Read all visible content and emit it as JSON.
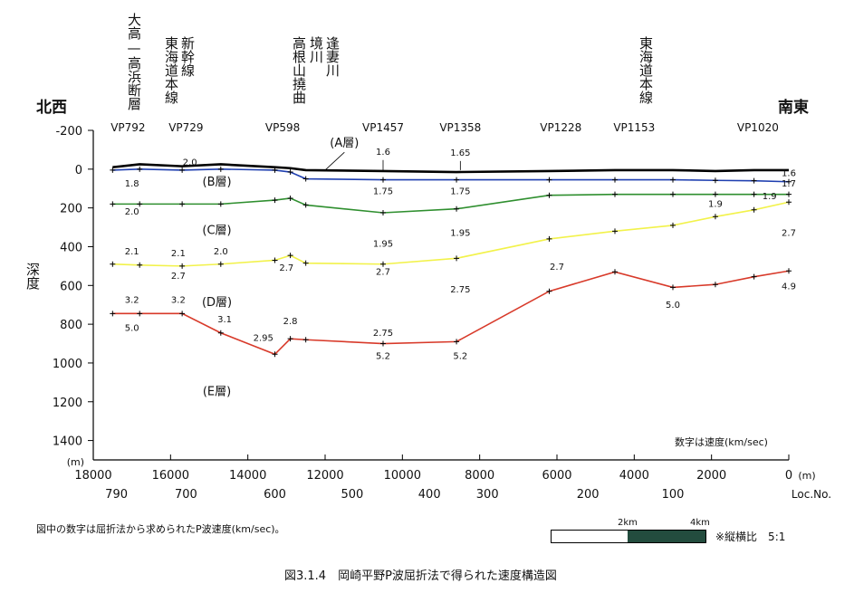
{
  "left_direction": "北西",
  "right_direction": "南東",
  "top_labels": {
    "oodaka": "大高—高浜断層",
    "shinkansen": "新幹線",
    "tokaido1": "東海道本線",
    "takane": "高根山撓曲",
    "sakaigawa": "境川",
    "aizuma": "逢妻川",
    "tokaido2": "東海道本線"
  },
  "depth_label": "深度",
  "note_right": "数字は速度(km/sec)",
  "note_left": "図中の数字は屈折法から求められたP波速度(km/sec)。",
  "scale": {
    "tick_a": "2km",
    "tick_b": "4km",
    "ratio": "※縦横比　5:1"
  },
  "caption": "図3.1.4　岡崎平野P波屈折法で得られた速度構造図",
  "chart_data": {
    "type": "line",
    "xlabel": "(m)",
    "x_reversed": true,
    "xlim": [
      18000,
      0
    ],
    "ylabel": "深度",
    "y_unit": "(m)",
    "y_reversed": true,
    "ylim": [
      -200,
      1500
    ],
    "x_ticks": [
      18000,
      16000,
      14000,
      12000,
      10000,
      8000,
      6000,
      4000,
      2000,
      0
    ],
    "x_tick_labels": [
      "18000",
      "16000",
      "14000",
      "12000",
      "10000",
      "8000",
      "6000",
      "4000",
      "2000",
      "0"
    ],
    "y_ticks": [
      -200,
      0,
      200,
      400,
      600,
      800,
      1000,
      1200,
      1400
    ],
    "y_tick_labels": [
      "-200",
      "0",
      "200",
      "400",
      "600",
      "800",
      "1000",
      "1200",
      "1400"
    ],
    "loc_label": "Loc.No.",
    "loc_ticks": [
      {
        "label": "790",
        "x": 17400
      },
      {
        "label": "700",
        "x": 15600
      },
      {
        "label": "600",
        "x": 13300
      },
      {
        "label": "500",
        "x": 11300
      },
      {
        "label": "400",
        "x": 9300
      },
      {
        "label": "300",
        "x": 7800
      },
      {
        "label": "200",
        "x": 5200
      },
      {
        "label": "100",
        "x": 3000
      }
    ],
    "vp_labels": [
      {
        "label": "VP792",
        "x": 17100
      },
      {
        "label": "VP729",
        "x": 15600
      },
      {
        "label": "VP598",
        "x": 13100
      },
      {
        "label": "VP1457",
        "x": 10500
      },
      {
        "label": "VP1358",
        "x": 8500
      },
      {
        "label": "VP1228",
        "x": 5900
      },
      {
        "label": "VP1153",
        "x": 4000
      },
      {
        "label": "VP1020",
        "x": 800
      }
    ],
    "series": [
      {
        "name": "ground",
        "color": "#000000",
        "x": [
          17500,
          16800,
          15700,
          14700,
          13300,
          12900,
          12500,
          10500,
          8600,
          6200,
          4500,
          3000,
          1900,
          900,
          0
        ],
        "y": [
          -10,
          -25,
          -15,
          -25,
          -10,
          -5,
          5,
          10,
          15,
          10,
          5,
          5,
          10,
          5,
          5
        ]
      },
      {
        "name": "A",
        "color": "#1f3fb0",
        "x": [
          17500,
          16800,
          15700,
          14700,
          13300,
          12900,
          12500,
          10500,
          8600,
          6200,
          4500,
          3000,
          1900,
          900,
          0
        ],
        "y": [
          5,
          0,
          5,
          0,
          5,
          15,
          50,
          55,
          55,
          55,
          55,
          55,
          58,
          60,
          65
        ]
      },
      {
        "name": "B",
        "color": "#2f8f2f",
        "x": [
          17500,
          16800,
          15700,
          14700,
          13300,
          12900,
          12500,
          10500,
          8600,
          6200,
          4500,
          3000,
          1900,
          900,
          0
        ],
        "y": [
          180,
          180,
          180,
          180,
          160,
          150,
          185,
          225,
          205,
          135,
          130,
          130,
          130,
          130,
          130
        ]
      },
      {
        "name": "C",
        "color": "#f2f24a",
        "x": [
          17500,
          16800,
          15700,
          14700,
          13300,
          12900,
          12500,
          10500,
          8600,
          6200,
          4500,
          3000,
          1900,
          900,
          0
        ],
        "y": [
          490,
          495,
          500,
          490,
          470,
          445,
          485,
          490,
          460,
          360,
          320,
          290,
          245,
          210,
          170
        ]
      },
      {
        "name": "D",
        "color": "#d83a2a",
        "x": [
          17500,
          16800,
          15700,
          14700,
          13300,
          12900,
          12500,
          10500,
          8600,
          6200,
          4500,
          3000,
          1900,
          900,
          0
        ],
        "y": [
          745,
          745,
          745,
          845,
          955,
          875,
          880,
          900,
          890,
          630,
          530,
          610,
          595,
          555,
          525
        ]
      }
    ],
    "layer_labels": [
      {
        "text": "(A層)",
        "x": 11500,
        "y": -115
      },
      {
        "text": "(B層)",
        "x": 14800,
        "y": 85
      },
      {
        "text": "(C層)",
        "x": 14800,
        "y": 335
      },
      {
        "text": "(D層)",
        "x": 14800,
        "y": 705
      },
      {
        "text": "(E層)",
        "x": 14800,
        "y": 1165
      }
    ],
    "velocities": [
      {
        "text": "1.6",
        "x": 10500,
        "y": -75
      },
      {
        "text": "1.65",
        "x": 8500,
        "y": -70
      },
      {
        "text": "2.0",
        "x": 15500,
        "y": -20
      },
      {
        "text": "1.8",
        "x": 17000,
        "y": 90
      },
      {
        "text": "1.75",
        "x": 10500,
        "y": 130
      },
      {
        "text": "1.75",
        "x": 8500,
        "y": 130
      },
      {
        "text": "1.6",
        "x": 0,
        "y": 35
      },
      {
        "text": "1.7",
        "x": 0,
        "y": 90
      },
      {
        "text": "2.0",
        "x": 17000,
        "y": 235
      },
      {
        "text": "1.9",
        "x": 1900,
        "y": 195
      },
      {
        "text": "1.9",
        "x": 500,
        "y": 155
      },
      {
        "text": "1.95",
        "x": 10500,
        "y": 400
      },
      {
        "text": "1.95",
        "x": 8500,
        "y": 345
      },
      {
        "text": "2.7",
        "x": 0,
        "y": 345
      },
      {
        "text": "2.1",
        "x": 17000,
        "y": 440
      },
      {
        "text": "2.1",
        "x": 15800,
        "y": 450
      },
      {
        "text": "2.0",
        "x": 14700,
        "y": 440
      },
      {
        "text": "2.7",
        "x": 15800,
        "y": 565
      },
      {
        "text": "2.7",
        "x": 13000,
        "y": 525
      },
      {
        "text": "2.7",
        "x": 10500,
        "y": 545
      },
      {
        "text": "2.7",
        "x": 6000,
        "y": 520
      },
      {
        "text": "2.75",
        "x": 8500,
        "y": 635
      },
      {
        "text": "3.2",
        "x": 17000,
        "y": 690
      },
      {
        "text": "3.2",
        "x": 15800,
        "y": 690
      },
      {
        "text": "3.1",
        "x": 14600,
        "y": 790
      },
      {
        "text": "2.8",
        "x": 12900,
        "y": 800
      },
      {
        "text": "2.95",
        "x": 13600,
        "y": 885
      },
      {
        "text": "2.75",
        "x": 10500,
        "y": 860
      },
      {
        "text": "5.0",
        "x": 17000,
        "y": 835
      },
      {
        "text": "5.2",
        "x": 10500,
        "y": 980
      },
      {
        "text": "5.2",
        "x": 8500,
        "y": 980
      },
      {
        "text": "5.0",
        "x": 3000,
        "y": 715
      },
      {
        "text": "4.9",
        "x": 0,
        "y": 620
      }
    ]
  }
}
